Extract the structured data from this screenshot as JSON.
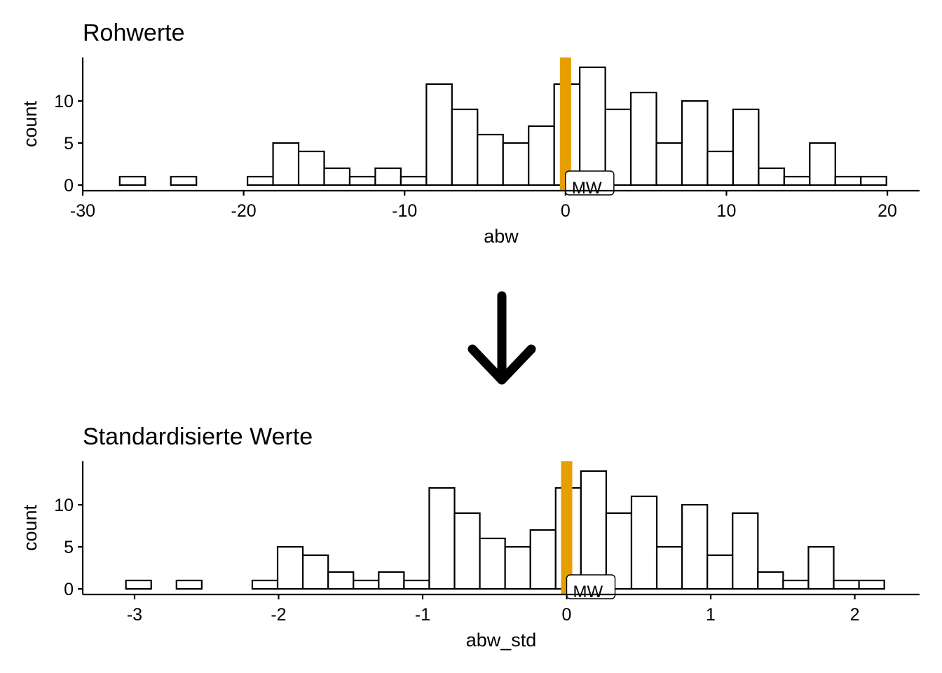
{
  "chart_data": [
    {
      "type": "bar",
      "title": "Rohwerte",
      "xlabel": "abw",
      "ylabel": "count",
      "xlim": [
        -30,
        22
      ],
      "ylim": [
        0,
        14.5
      ],
      "xticks": [
        -30,
        -20,
        -10,
        0,
        10,
        20
      ],
      "xtick_labels": [
        "-30",
        "-20",
        "-10",
        "0",
        "10",
        "20"
      ],
      "yticks": [
        0,
        5,
        10
      ],
      "ytick_labels": [
        "0",
        "5",
        "10"
      ],
      "bin_start": -27.7,
      "bin_width": 1.588,
      "values": [
        1,
        0,
        1,
        0,
        0,
        1,
        5,
        4,
        2,
        1,
        2,
        1,
        12,
        9,
        6,
        5,
        7,
        12,
        14,
        9,
        11,
        5,
        10,
        4,
        9,
        2,
        1,
        5,
        1,
        1
      ],
      "mean_line": {
        "x": 0,
        "label": "MW",
        "color": "#E69F00"
      }
    },
    {
      "type": "bar",
      "title": "Standardisierte Werte",
      "xlabel": "abw_std",
      "ylabel": "count",
      "xlim": [
        -3.36,
        2.45
      ],
      "ylim": [
        0,
        14.5
      ],
      "xticks": [
        -3,
        -2,
        -1,
        0,
        1,
        2
      ],
      "xtick_labels": [
        "-3",
        "-2",
        "-1",
        "0",
        "1",
        "2"
      ],
      "yticks": [
        0,
        5,
        10
      ],
      "ytick_labels": [
        "0",
        "5",
        "10"
      ],
      "bin_start": -3.06,
      "bin_width": 0.1755,
      "values": [
        1,
        0,
        1,
        0,
        0,
        1,
        5,
        4,
        2,
        1,
        2,
        1,
        12,
        9,
        6,
        5,
        7,
        12,
        14,
        9,
        11,
        5,
        10,
        4,
        9,
        2,
        1,
        5,
        1,
        1
      ],
      "mean_line": {
        "x": 0,
        "label": "MW",
        "color": "#E69F00"
      }
    }
  ],
  "transform_arrow": {
    "icon": "arrow-down-icon"
  }
}
